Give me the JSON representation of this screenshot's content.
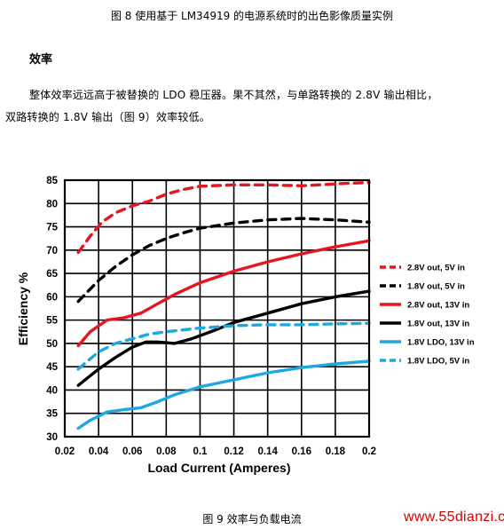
{
  "document": {
    "caption_top": "图 8  使用基于  LM34919  的电源系统时的出色影像质量实例",
    "section_heading": "效率",
    "paragraph_line_1": "整体效率远远高于被替换的  LDO  稳压器。果不其然，与单路转换的  2.8V  输出相比，",
    "paragraph_line_2": "双路转换的  1.8V  输出（图  9）效率较低。",
    "caption_bottom": "图 9 效率与负载电流",
    "watermark": "www.55dianzi.com"
  },
  "chart_data": {
    "type": "line",
    "title": "",
    "xlabel": "Load Current (Amperes)",
    "ylabel": "Efficiency %",
    "xlim": [
      0.02,
      0.2
    ],
    "ylim": [
      30,
      85
    ],
    "xticks": [
      "0.02",
      "0.04",
      "0.06",
      "0.08",
      "0.1",
      "0.12",
      "0.14",
      "0.16",
      "0.18",
      "0.2"
    ],
    "yticks": [
      "30",
      "35",
      "40",
      "45",
      "50",
      "55",
      "60",
      "65",
      "70",
      "75",
      "80",
      "85"
    ],
    "grid": true,
    "legend_position": "right",
    "series": [
      {
        "name": "2.8V out, 5V in",
        "color": "#e8141e",
        "dash": true,
        "points": [
          [
            0.028,
            69.5
          ],
          [
            0.035,
            73
          ],
          [
            0.042,
            76
          ],
          [
            0.05,
            78
          ],
          [
            0.06,
            79.5
          ],
          [
            0.07,
            80.5
          ],
          [
            0.08,
            82
          ],
          [
            0.09,
            83
          ],
          [
            0.1,
            83.7
          ],
          [
            0.12,
            84
          ],
          [
            0.14,
            84
          ],
          [
            0.16,
            83.8
          ],
          [
            0.18,
            84.2
          ],
          [
            0.2,
            84.5
          ]
        ]
      },
      {
        "name": "1.8V out, 5V in",
        "color": "#000000",
        "dash": true,
        "points": [
          [
            0.028,
            59
          ],
          [
            0.04,
            63.5
          ],
          [
            0.05,
            66.5
          ],
          [
            0.06,
            69
          ],
          [
            0.07,
            71
          ],
          [
            0.08,
            72.5
          ],
          [
            0.09,
            73.7
          ],
          [
            0.1,
            74.7
          ],
          [
            0.12,
            75.8
          ],
          [
            0.14,
            76.5
          ],
          [
            0.16,
            76.8
          ],
          [
            0.18,
            76.5
          ],
          [
            0.2,
            76
          ]
        ]
      },
      {
        "name": "2.8V out, 13V in",
        "color": "#e8141e",
        "dash": false,
        "points": [
          [
            0.028,
            49.5
          ],
          [
            0.035,
            52.5
          ],
          [
            0.045,
            55
          ],
          [
            0.055,
            55.5
          ],
          [
            0.065,
            56.5
          ],
          [
            0.075,
            58.5
          ],
          [
            0.085,
            60.5
          ],
          [
            0.1,
            63
          ],
          [
            0.12,
            65.5
          ],
          [
            0.14,
            67.5
          ],
          [
            0.16,
            69.2
          ],
          [
            0.18,
            70.7
          ],
          [
            0.2,
            72
          ]
        ]
      },
      {
        "name": "1.8V out, 13V in",
        "color": "#000000",
        "dash": false,
        "points": [
          [
            0.028,
            41
          ],
          [
            0.04,
            44.5
          ],
          [
            0.05,
            47
          ],
          [
            0.06,
            49.2
          ],
          [
            0.068,
            50.3
          ],
          [
            0.075,
            50.3
          ],
          [
            0.085,
            50
          ],
          [
            0.095,
            51
          ],
          [
            0.11,
            53
          ],
          [
            0.12,
            54.5
          ],
          [
            0.14,
            56.5
          ],
          [
            0.16,
            58.5
          ],
          [
            0.18,
            60
          ],
          [
            0.2,
            61.2
          ]
        ]
      },
      {
        "name": "1.8V LDO, 13V in",
        "color": "#1ea8e0",
        "dash": false,
        "points": [
          [
            0.028,
            31.8
          ],
          [
            0.035,
            33.5
          ],
          [
            0.045,
            35.3
          ],
          [
            0.055,
            35.8
          ],
          [
            0.065,
            36.2
          ],
          [
            0.075,
            37.5
          ],
          [
            0.085,
            39
          ],
          [
            0.1,
            40.7
          ],
          [
            0.12,
            42.2
          ],
          [
            0.14,
            43.7
          ],
          [
            0.16,
            44.8
          ],
          [
            0.18,
            45.6
          ],
          [
            0.2,
            46.2
          ]
        ]
      },
      {
        "name": "1.8V LDO, 5V in",
        "color": "#1ea8e0",
        "dash": true,
        "points": [
          [
            0.028,
            44.5
          ],
          [
            0.04,
            48.2
          ],
          [
            0.05,
            50
          ],
          [
            0.06,
            51
          ],
          [
            0.07,
            52
          ],
          [
            0.08,
            52.5
          ],
          [
            0.1,
            53.3
          ],
          [
            0.12,
            53.8
          ],
          [
            0.14,
            54
          ],
          [
            0.16,
            54
          ],
          [
            0.18,
            54.2
          ],
          [
            0.2,
            54.3
          ]
        ]
      }
    ]
  }
}
